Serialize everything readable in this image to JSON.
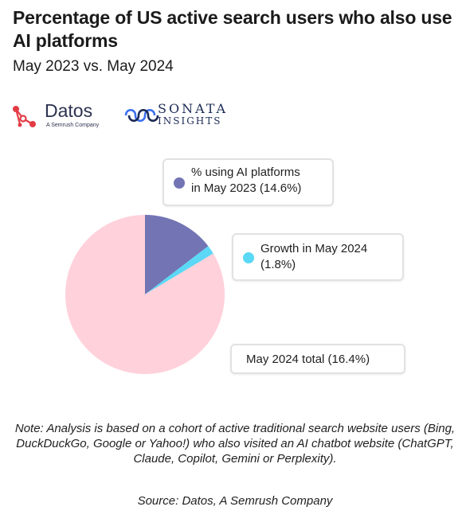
{
  "header": {
    "title": "Percentage of US active search users who also use AI platforms",
    "subtitle": "May 2023 vs. May 2024"
  },
  "logos": {
    "datos_name": "Datos",
    "datos_tagline": "A Semrush Company",
    "sonata_line1": "SONATA",
    "sonata_line2": "INSIGHTS",
    "datos_icon": "datos-network-icon",
    "sonata_icon": "sonata-waves-icon"
  },
  "colors": {
    "ai_2023": "#7274b4",
    "growth_2024": "#5ad8f5",
    "remainder": "#ffd1db",
    "datos_red": "#e33b45",
    "sonata_blue": "#3a6ff0"
  },
  "chart_data": {
    "type": "pie",
    "slices": [
      {
        "label": "% using AI platforms in May 2023 (14.6%)",
        "value": 14.6,
        "color": "#7274b4"
      },
      {
        "label": "Growth in May 2024 (1.8%)",
        "value": 1.8,
        "color": "#5ad8f5"
      },
      {
        "label": "",
        "value": 83.6,
        "color": "#ffd1db"
      }
    ],
    "annotations": [
      {
        "label_line1": "% using AI platforms",
        "label_line2": "in May 2023 (14.6%)"
      },
      {
        "label_line1": "Growth in May 2024",
        "label_line2": "(1.8%)"
      },
      {
        "label_line1": "May 2024 total (16.4%)",
        "label_line2": ""
      }
    ]
  },
  "footer": {
    "note": "Note: Analysis is based on a cohort of active traditional search website users (Bing, DuckDuckGo, Google or Yahoo!) who also visited an AI chatbot website (ChatGPT, Claude, Copilot, Gemini or Perplexity).",
    "source": "Source: Datos, A Semrush Company"
  }
}
